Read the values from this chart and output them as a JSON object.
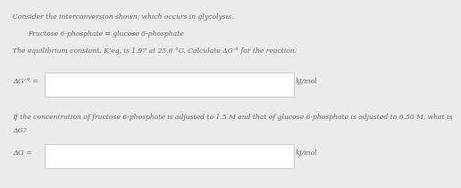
{
  "bg_color": "#ebebeb",
  "text_color": "#666666",
  "box_color": "#ffffff",
  "box_edge_color": "#bbbbbb",
  "line1": "Consider the interconversion shown, which occurs in glycolysis.",
  "line2": "Fructose 6-phosphate ⇌ glucose 6-phosphate",
  "line3": "The equilibrium constant, K’eq, is 1.97 at 25.0 °C. Calculate ΔG’° for the reaction.",
  "label1": "ΔG’° =",
  "unit1": "kJ/mol",
  "line4a": "If the concentration of fructose 6-phosphate is adjusted to 1.5 M and that of glucose 6-phosphate is adjusted to 0.50 M, what is",
  "line4b": "ΔG?",
  "label2": "ΔG =",
  "unit2": "kJ/mol",
  "fontsize_main": 5.5,
  "fontsize_label": 6.0
}
